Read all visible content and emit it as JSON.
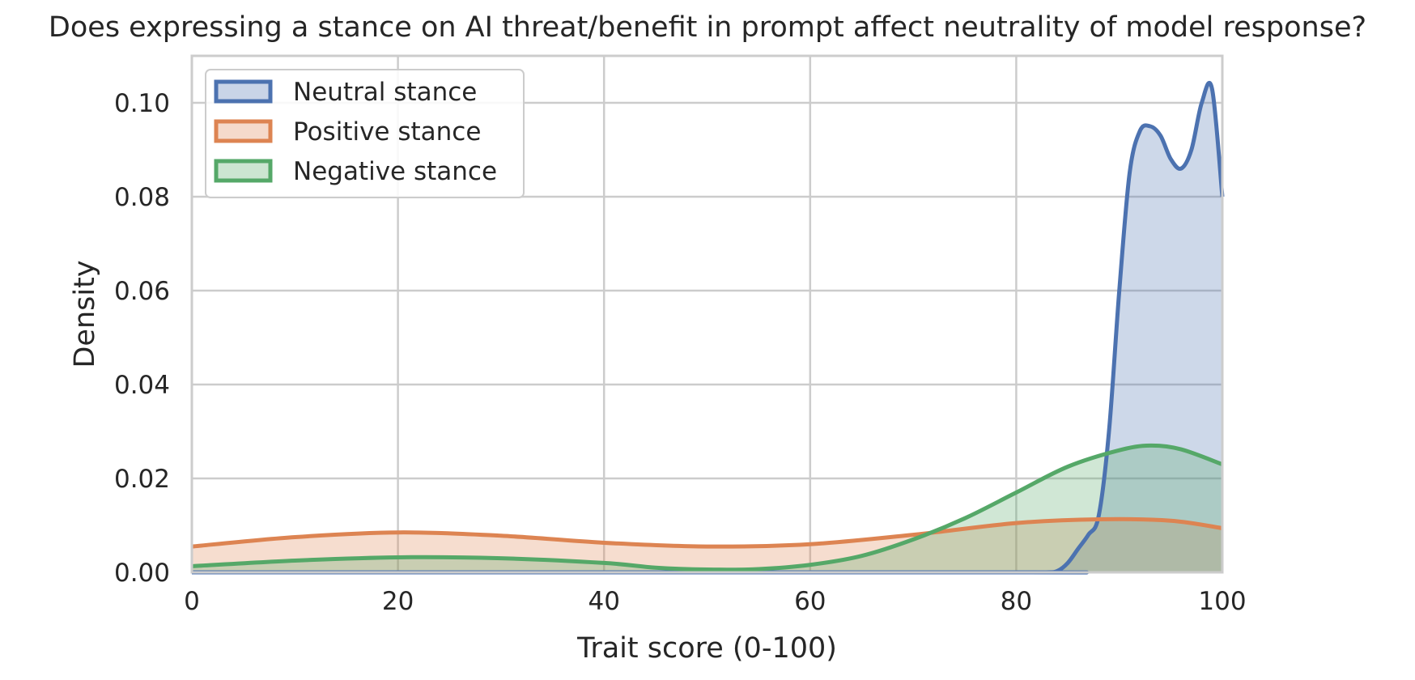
{
  "chart_data": {
    "type": "area",
    "title": "Does expressing a stance on AI threat/benefit in prompt affect neutrality of model response?",
    "xlabel": "Trait score (0-100)",
    "ylabel": "Density",
    "xlim": [
      0,
      100
    ],
    "ylim": [
      0,
      0.11
    ],
    "xticks": [
      0,
      20,
      40,
      60,
      80,
      100
    ],
    "xtick_labels": [
      "0",
      "20",
      "40",
      "60",
      "80",
      "100"
    ],
    "yticks": [
      0,
      0.02,
      0.04,
      0.06,
      0.08,
      0.1
    ],
    "ytick_labels": [
      "0.00",
      "0.02",
      "0.04",
      "0.06",
      "0.08",
      "0.10"
    ],
    "grid": true,
    "legend_position": "top-left",
    "series": [
      {
        "name": "Neutral stance",
        "color": "#4c72b0",
        "x": [
          0,
          80,
          83,
          84,
          85,
          86,
          87,
          88,
          89,
          90,
          91,
          92,
          93,
          94,
          95,
          96,
          97,
          98,
          99,
          100
        ],
        "y": [
          0,
          0,
          0,
          0.0003,
          0.002,
          0.005,
          0.008,
          0.012,
          0.03,
          0.06,
          0.085,
          0.094,
          0.095,
          0.093,
          0.088,
          0.086,
          0.09,
          0.1,
          0.103,
          0.08
        ]
      },
      {
        "name": "Positive stance",
        "color": "#dd8452",
        "x": [
          0,
          10,
          20,
          30,
          40,
          50,
          60,
          70,
          80,
          88,
          95,
          100
        ],
        "y": [
          0.0055,
          0.0075,
          0.0085,
          0.0078,
          0.0063,
          0.0055,
          0.006,
          0.008,
          0.0105,
          0.0113,
          0.011,
          0.0094
        ]
      },
      {
        "name": "Negative stance",
        "color": "#55a868",
        "x": [
          0,
          10,
          20,
          30,
          40,
          45,
          50,
          55,
          60,
          65,
          70,
          75,
          80,
          85,
          90,
          93,
          96,
          100
        ],
        "y": [
          0.0013,
          0.0025,
          0.0032,
          0.003,
          0.002,
          0.001,
          0.0006,
          0.0007,
          0.0016,
          0.0035,
          0.007,
          0.0115,
          0.017,
          0.0225,
          0.026,
          0.027,
          0.0262,
          0.023
        ]
      }
    ]
  }
}
